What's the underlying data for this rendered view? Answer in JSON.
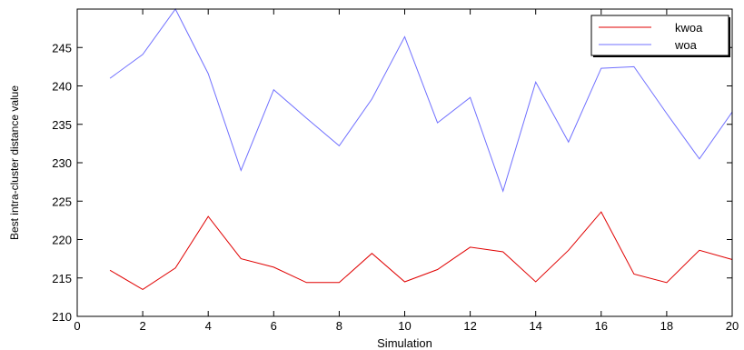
{
  "chart_data": {
    "type": "line",
    "xlabel": "Simulation",
    "ylabel": "Best intra-cluster distance value",
    "xlim": [
      0,
      20
    ],
    "ylim": [
      210,
      250
    ],
    "xticks": [
      0,
      2,
      4,
      6,
      8,
      10,
      12,
      14,
      16,
      18,
      20
    ],
    "yticks": [
      210,
      215,
      220,
      225,
      230,
      235,
      240,
      245
    ],
    "grid": false,
    "legend_position": "top-right",
    "x": [
      1,
      2,
      3,
      4,
      5,
      6,
      7,
      8,
      9,
      10,
      11,
      12,
      13,
      14,
      15,
      16,
      17,
      18,
      19,
      20
    ],
    "series": [
      {
        "name": "kwoa",
        "color": "#e00000",
        "values": [
          216.0,
          213.5,
          216.3,
          223.0,
          217.5,
          216.4,
          214.4,
          214.4,
          218.2,
          214.5,
          216.1,
          219.0,
          218.4,
          214.5,
          218.6,
          223.6,
          215.5,
          214.4,
          218.6,
          217.4
        ]
      },
      {
        "name": "woa",
        "color": "#7070ff",
        "values": [
          241.0,
          244.1,
          250.0,
          241.6,
          229.0,
          239.5,
          235.8,
          232.2,
          238.3,
          246.4,
          235.2,
          238.5,
          226.3,
          240.5,
          232.7,
          242.3,
          242.5,
          236.4,
          230.5,
          236.6
        ]
      }
    ]
  }
}
